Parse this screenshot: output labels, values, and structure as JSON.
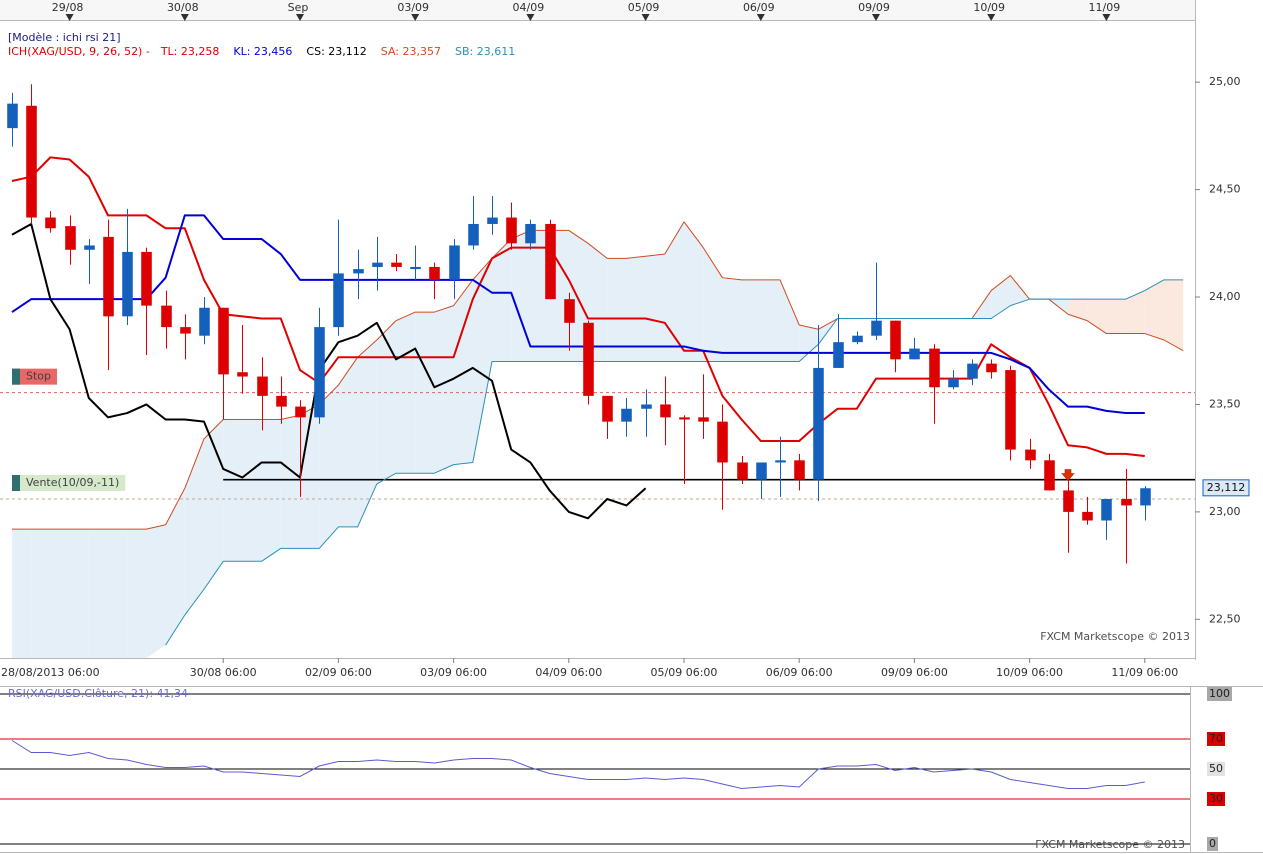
{
  "chart_data": [
    {
      "type": "candlestick",
      "title": "[Modèle : ichi rsi 21]",
      "legend_prefix": "ICH(XAG/USD, 9, 26, 52) -",
      "watermark": "FXCM Marketscope © 2013",
      "up_color": "#1560bd",
      "down_color": "#dd0000",
      "cloud_up_color": "#e4eff8",
      "cloud_down_color": "#fbe9e0",
      "xlim": [
        -0.625,
        61.615
      ],
      "ylim": [
        22.32,
        25.28
      ],
      "yticks": [
        {
          "value": 25,
          "label": "25,00"
        },
        {
          "value": 24.5,
          "label": "24,50"
        },
        {
          "value": 24,
          "label": "24,00"
        },
        {
          "value": 23.5,
          "label": "23,50"
        },
        {
          "value": 23,
          "label": "23,00"
        },
        {
          "value": 22.5,
          "label": "22,50"
        }
      ],
      "xticks": [
        {
          "value": -1,
          "label": "28/08/2013 06:00"
        },
        {
          "value": 11,
          "label": "30/08 06:00"
        },
        {
          "value": 17,
          "label": "02/09 06:00"
        },
        {
          "value": 23,
          "label": "03/09 06:00"
        },
        {
          "value": 29,
          "label": "04/09 06:00"
        },
        {
          "value": 35,
          "label": "05/09 06:00"
        },
        {
          "value": 41,
          "label": "06/09 06:00"
        },
        {
          "value": 47,
          "label": "09/09 06:00"
        },
        {
          "value": 53,
          "label": "10/09 06:00"
        },
        {
          "value": 59,
          "label": "11/09 06:00"
        }
      ],
      "top_xticks": [
        {
          "value": 3,
          "label": "29/08"
        },
        {
          "value": 9,
          "label": "30/08"
        },
        {
          "value": 15,
          "label": "Sep"
        },
        {
          "value": 21,
          "label": "03/09"
        },
        {
          "value": 27,
          "label": "04/09"
        },
        {
          "value": 33,
          "label": "05/09"
        },
        {
          "value": 39,
          "label": "06/09"
        },
        {
          "value": 45,
          "label": "09/09"
        },
        {
          "value": 51,
          "label": "10/09"
        },
        {
          "value": 57,
          "label": "11/09"
        }
      ],
      "x": [
        0,
        1,
        2,
        3,
        4,
        5,
        6,
        7,
        8,
        9,
        10,
        11,
        12,
        13,
        14,
        15,
        16,
        17,
        18,
        19,
        20,
        21,
        22,
        23,
        24,
        25,
        26,
        27,
        28,
        29,
        30,
        31,
        32,
        33,
        34,
        35,
        36,
        37,
        38,
        39,
        40,
        41,
        42,
        43,
        44,
        45,
        46,
        47,
        48,
        49,
        50,
        51,
        52,
        53,
        54,
        55,
        56,
        57,
        58,
        59
      ],
      "open": [
        24.786,
        24.89,
        24.37,
        24.33,
        24.22,
        24.28,
        23.91,
        24.21,
        23.96,
        23.86,
        23.82,
        23.95,
        23.65,
        23.63,
        23.54,
        23.49,
        23.44,
        23.86,
        24.11,
        24.14,
        24.16,
        24.13,
        24.14,
        24.08,
        24.24,
        24.34,
        24.37,
        24.25,
        24.34,
        23.99,
        23.88,
        23.54,
        23.42,
        23.48,
        23.5,
        23.44,
        23.44,
        23.42,
        23.23,
        23.15,
        23.23,
        23.24,
        23.15,
        23.67,
        23.79,
        23.82,
        23.89,
        23.71,
        23.76,
        23.58,
        23.62,
        23.69,
        23.66,
        23.29,
        23.24,
        23.1,
        23.0,
        22.96,
        23.06,
        23.03
      ],
      "high": [
        24.95,
        24.99,
        24.4,
        24.38,
        24.27,
        24.36,
        24.41,
        24.23,
        24.03,
        23.92,
        24.0,
        23.95,
        23.87,
        23.72,
        23.63,
        23.52,
        23.95,
        24.36,
        24.22,
        24.28,
        24.2,
        24.24,
        24.16,
        24.27,
        24.47,
        24.47,
        24.44,
        24.36,
        24.36,
        24.02,
        23.89,
        23.54,
        23.53,
        23.57,
        23.63,
        23.45,
        23.64,
        23.5,
        23.26,
        23.23,
        23.35,
        23.27,
        23.87,
        23.92,
        23.84,
        24.16,
        23.89,
        23.81,
        23.78,
        23.66,
        23.71,
        23.71,
        23.68,
        23.34,
        23.27,
        23.15,
        23.07,
        23.06,
        23.2,
        23.12
      ],
      "low": [
        24.7,
        24.34,
        24.3,
        24.15,
        24.06,
        23.66,
        23.87,
        23.73,
        23.76,
        23.71,
        23.78,
        23.43,
        23.55,
        23.38,
        23.41,
        23.07,
        23.41,
        23.82,
        23.99,
        24.03,
        24.12,
        24.08,
        23.99,
        23.99,
        24.22,
        24.29,
        24.22,
        24.22,
        23.99,
        23.75,
        23.5,
        23.34,
        23.35,
        23.35,
        23.31,
        23.13,
        23.34,
        23.01,
        23.13,
        23.06,
        23.07,
        23.1,
        23.05,
        23.67,
        23.78,
        23.8,
        23.65,
        23.71,
        23.41,
        23.57,
        23.59,
        23.62,
        23.24,
        23.2,
        23.1,
        22.81,
        22.94,
        22.87,
        22.76,
        22.96
      ],
      "close": [
        24.9,
        24.37,
        24.32,
        24.22,
        24.24,
        23.91,
        24.21,
        23.96,
        23.86,
        23.83,
        23.95,
        23.64,
        23.63,
        23.54,
        23.49,
        23.44,
        23.86,
        24.11,
        24.13,
        24.16,
        24.14,
        24.14,
        24.08,
        24.24,
        24.34,
        24.37,
        24.25,
        24.34,
        23.99,
        23.88,
        23.54,
        23.42,
        23.48,
        23.5,
        23.44,
        23.43,
        23.42,
        23.23,
        23.15,
        23.23,
        23.24,
        23.15,
        23.67,
        23.79,
        23.82,
        23.89,
        23.71,
        23.76,
        23.58,
        23.62,
        23.69,
        23.65,
        23.29,
        23.24,
        23.1,
        23.0,
        22.96,
        23.06,
        23.03,
        23.11
      ],
      "lines": {
        "x": [
          0,
          1,
          2,
          3,
          4,
          5,
          6,
          7,
          8,
          9,
          10,
          11,
          12,
          13,
          14,
          15,
          16,
          17,
          18,
          19,
          20,
          21,
          22,
          23,
          24,
          25,
          26,
          27,
          28,
          29,
          30,
          31,
          32,
          33,
          34,
          35,
          36,
          37,
          38,
          39,
          40,
          41,
          42,
          43,
          44,
          45,
          46,
          47,
          48,
          49,
          50,
          51,
          52,
          53,
          54,
          55,
          56,
          57,
          58,
          59,
          60,
          61
        ],
        "series": [
          {
            "name": "TL: 23,258",
            "color": "#e00000",
            "width": 2,
            "values": [
              24.54,
              24.56,
              24.65,
              24.64,
              24.56,
              24.38,
              24.38,
              24.38,
              24.32,
              24.32,
              24.08,
              23.92,
              23.91,
              23.9,
              23.9,
              23.66,
              23.6,
              23.72,
              23.72,
              23.72,
              23.72,
              23.72,
              23.72,
              23.72,
              23.99,
              24.18,
              24.23,
              24.23,
              24.23,
              24.08,
              23.9,
              23.9,
              23.9,
              23.9,
              23.88,
              23.75,
              23.75,
              23.54,
              23.43,
              23.33,
              23.33,
              23.33,
              23.41,
              23.48,
              23.48,
              23.62,
              23.62,
              23.62,
              23.62,
              23.62,
              23.62,
              23.78,
              23.72,
              23.67,
              23.5,
              23.31,
              23.3,
              23.27,
              23.27,
              23.26,
              null,
              null
            ]
          },
          {
            "name": "KL: 23,456",
            "color": "#0000d8",
            "width": 2,
            "values": [
              23.93,
              23.99,
              23.99,
              23.99,
              23.99,
              23.99,
              23.99,
              23.99,
              24.09,
              24.38,
              24.38,
              24.27,
              24.27,
              24.27,
              24.2,
              24.08,
              24.08,
              24.08,
              24.08,
              24.08,
              24.08,
              24.08,
              24.08,
              24.08,
              24.08,
              24.02,
              24.02,
              23.77,
              23.77,
              23.77,
              23.77,
              23.77,
              23.77,
              23.77,
              23.77,
              23.77,
              23.75,
              23.74,
              23.74,
              23.74,
              23.74,
              23.74,
              23.74,
              23.74,
              23.74,
              23.74,
              23.74,
              23.74,
              23.74,
              23.74,
              23.74,
              23.74,
              23.71,
              23.67,
              23.57,
              23.49,
              23.49,
              23.47,
              23.46,
              23.46,
              null,
              null
            ]
          },
          {
            "name": "CS: 23,112",
            "color": "#000000",
            "width": 2,
            "values": [
              24.29,
              24.34,
              23.99,
              23.85,
              23.53,
              23.44,
              23.46,
              23.5,
              23.43,
              23.43,
              23.42,
              23.2,
              23.16,
              23.23,
              23.23,
              23.16,
              23.66,
              23.79,
              23.82,
              23.88,
              23.71,
              23.76,
              23.58,
              23.62,
              23.67,
              23.61,
              23.29,
              23.23,
              23.1,
              23.0,
              22.97,
              23.06,
              23.03,
              23.11,
              null,
              null,
              null,
              null,
              null,
              null,
              null,
              null,
              null,
              null,
              null,
              null,
              null,
              null,
              null,
              null,
              null,
              null,
              null,
              null,
              null,
              null,
              null,
              null,
              null,
              null,
              null,
              null
            ]
          },
          {
            "name": "SA: 23,357",
            "color": "#d24a1e",
            "width": 1,
            "values": [
              22.92,
              22.92,
              22.92,
              22.92,
              22.92,
              22.92,
              22.92,
              22.92,
              22.94,
              23.11,
              23.34,
              23.43,
              23.43,
              23.43,
              23.43,
              23.45,
              23.5,
              23.59,
              23.72,
              23.8,
              23.89,
              23.93,
              23.93,
              23.96,
              24.08,
              24.18,
              24.27,
              24.31,
              24.31,
              24.31,
              24.25,
              24.18,
              24.18,
              24.19,
              24.2,
              24.35,
              24.23,
              24.09,
              24.08,
              24.08,
              24.08,
              23.87,
              23.85,
              23.9,
              23.9,
              23.9,
              23.9,
              23.9,
              23.9,
              23.9,
              23.9,
              24.03,
              24.1,
              23.99,
              23.99,
              23.92,
              23.89,
              23.83,
              23.83,
              23.83,
              23.8,
              23.75
            ]
          },
          {
            "name": "SB: 23,611",
            "color": "#2a90b8",
            "width": 1,
            "values": [
              null,
              null,
              null,
              null,
              null,
              null,
              null,
              null,
              22.38,
              22.52,
              22.64,
              22.77,
              22.77,
              22.77,
              22.83,
              22.83,
              22.83,
              22.93,
              22.93,
              23.13,
              23.18,
              23.18,
              23.18,
              23.22,
              23.23,
              23.7,
              23.7,
              23.7,
              23.7,
              23.7,
              23.7,
              23.7,
              23.7,
              23.7,
              23.7,
              23.7,
              23.7,
              23.7,
              23.7,
              23.7,
              23.7,
              23.7,
              23.78,
              23.9,
              23.9,
              23.9,
              23.9,
              23.9,
              23.9,
              23.9,
              23.9,
              23.9,
              23.96,
              23.99,
              23.99,
              23.99,
              23.99,
              23.99,
              23.99,
              24.03,
              24.08,
              24.08
            ]
          }
        ]
      },
      "levels": [
        {
          "label": "Stop",
          "value": 23.555,
          "box_color": "#e86868",
          "line_color": "#e06060"
        },
        {
          "label": "Vente(10/09,-11)",
          "value": 23.06,
          "box_color": "#d6eacb",
          "line_color": "#c9a48a"
        }
      ],
      "trendline": {
        "x": 11,
        "value": 23.15,
        "color": "#000000"
      },
      "sell_signal": {
        "x": 55,
        "value": 23.16,
        "color": "#e03000"
      },
      "current_price": {
        "value": 23.112,
        "label": "23,112"
      }
    },
    {
      "type": "line",
      "title": "RSI(XAG/USD.Clôture, 21): 41,34",
      "watermark": "FXCM Marketscope © 2013",
      "color": "#5b5bd0",
      "xlim": [
        -0.625,
        61.615
      ],
      "ylim": [
        0,
        100
      ],
      "yticks": [
        100,
        70,
        50,
        30,
        0
      ],
      "tick_box_colors": [
        "#a8a8a8",
        "#dd0000",
        "#e2e2e2",
        "#dd0000",
        "#a8a8a8"
      ],
      "tick_line_colors": [
        "#000000",
        "#cc0000",
        "#000000",
        "#cc0000",
        "#000000"
      ],
      "x": [
        0,
        1,
        2,
        3,
        4,
        5,
        6,
        7,
        8,
        9,
        10,
        11,
        12,
        13,
        14,
        15,
        16,
        17,
        18,
        19,
        20,
        21,
        22,
        23,
        24,
        25,
        26,
        27,
        28,
        29,
        30,
        31,
        32,
        33,
        34,
        35,
        36,
        37,
        38,
        39,
        40,
        41,
        42,
        43,
        44,
        45,
        46,
        47,
        48,
        49,
        50,
        51,
        52,
        53,
        54,
        55,
        56,
        57,
        58,
        59
      ],
      "values": [
        69,
        61,
        61,
        59,
        61,
        57,
        56,
        53,
        51,
        51,
        52,
        48,
        48,
        47,
        46,
        45,
        52,
        55,
        55,
        56,
        55,
        55,
        54,
        56,
        57,
        57,
        56,
        51,
        47,
        45,
        43,
        43,
        43,
        44,
        43,
        44,
        43,
        40,
        37,
        38,
        39,
        38,
        50,
        52,
        52,
        53,
        49,
        51,
        48,
        49,
        50,
        48,
        43,
        41,
        39,
        37,
        37,
        39,
        39,
        41.34
      ]
    }
  ]
}
